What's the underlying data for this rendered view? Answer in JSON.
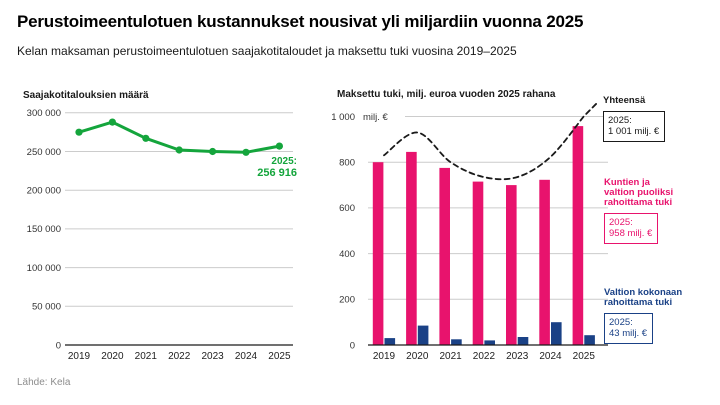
{
  "header": {
    "title": "Perustoimeentulotuen kustannukset nousivat yli miljardiin vuonna 2025",
    "subtitle": "Kelan maksaman perustoimeentulotuen saajakotitaloudet ja maksettu tuki vuosina 2019–2025"
  },
  "footer": {
    "source": "Lähde: Kela"
  },
  "colors": {
    "green": "#14a53c",
    "pink": "#e8136d",
    "blue": "#1a4186",
    "axis": "#1a1a1a",
    "grid": "#cccccc",
    "tick": "#333333"
  },
  "chart_data": [
    {
      "type": "line",
      "title": "Saajakotitalouksien määrä",
      "x": [
        "2019",
        "2020",
        "2021",
        "2022",
        "2023",
        "2024",
        "2025"
      ],
      "series": [
        {
          "name": "Saajakotitaloudet",
          "color_key": "green",
          "values": [
            275000,
            288000,
            267000,
            252000,
            250000,
            249000,
            256916
          ]
        }
      ],
      "ylim": [
        0,
        300000
      ],
      "ytick_step": 50000,
      "ytick_labels": [
        "0",
        "50 000",
        "100 000",
        "150 000",
        "200 000",
        "250 000",
        "300 000"
      ],
      "grid": true,
      "annotation": {
        "line1": "2025:",
        "line2": "256 916"
      }
    },
    {
      "type": "bar",
      "title": "Maksettu tuki, milj. euroa vuoden 2025 rahana",
      "x": [
        "2019",
        "2020",
        "2021",
        "2022",
        "2023",
        "2024",
        "2025"
      ],
      "series": [
        {
          "name": "Kuntien ja valtion puoliksi rahoittama tuki",
          "type": "bar",
          "color_key": "pink",
          "values": [
            800,
            845,
            775,
            715,
            700,
            723,
            958
          ]
        },
        {
          "name": "Valtion kokonaan rahoittama tuki",
          "type": "bar",
          "color_key": "blue",
          "values": [
            30,
            85,
            25,
            20,
            35,
            100,
            43
          ]
        },
        {
          "name": "Yhteensä",
          "type": "dashed-line",
          "color_key": "axis",
          "values": [
            830,
            930,
            800,
            735,
            735,
            823,
            1001
          ]
        }
      ],
      "ylim": [
        0,
        1000
      ],
      "ytick_step": 200,
      "ytick_labels": [
        "0",
        "200",
        "400",
        "600",
        "800",
        "1 000"
      ],
      "ytick_suffix": "milj. €",
      "grid": true,
      "legend_position": "right",
      "annotations": [
        {
          "heading": "Yhteensä",
          "color_key": "axis",
          "box_line1": "2025:",
          "box_line2": "1 001 milj. €"
        },
        {
          "heading_lines": [
            "Kuntien ja",
            "valtion puoliksi",
            "rahoittama tuki"
          ],
          "color_key": "pink",
          "box_line1": "2025:",
          "box_line2": "958 milj. €"
        },
        {
          "heading_lines": [
            "Valtion kokonaan",
            "rahoittama tuki"
          ],
          "color_key": "blue",
          "box_line1": "2025:",
          "box_line2": "43 milj. €"
        }
      ]
    }
  ]
}
